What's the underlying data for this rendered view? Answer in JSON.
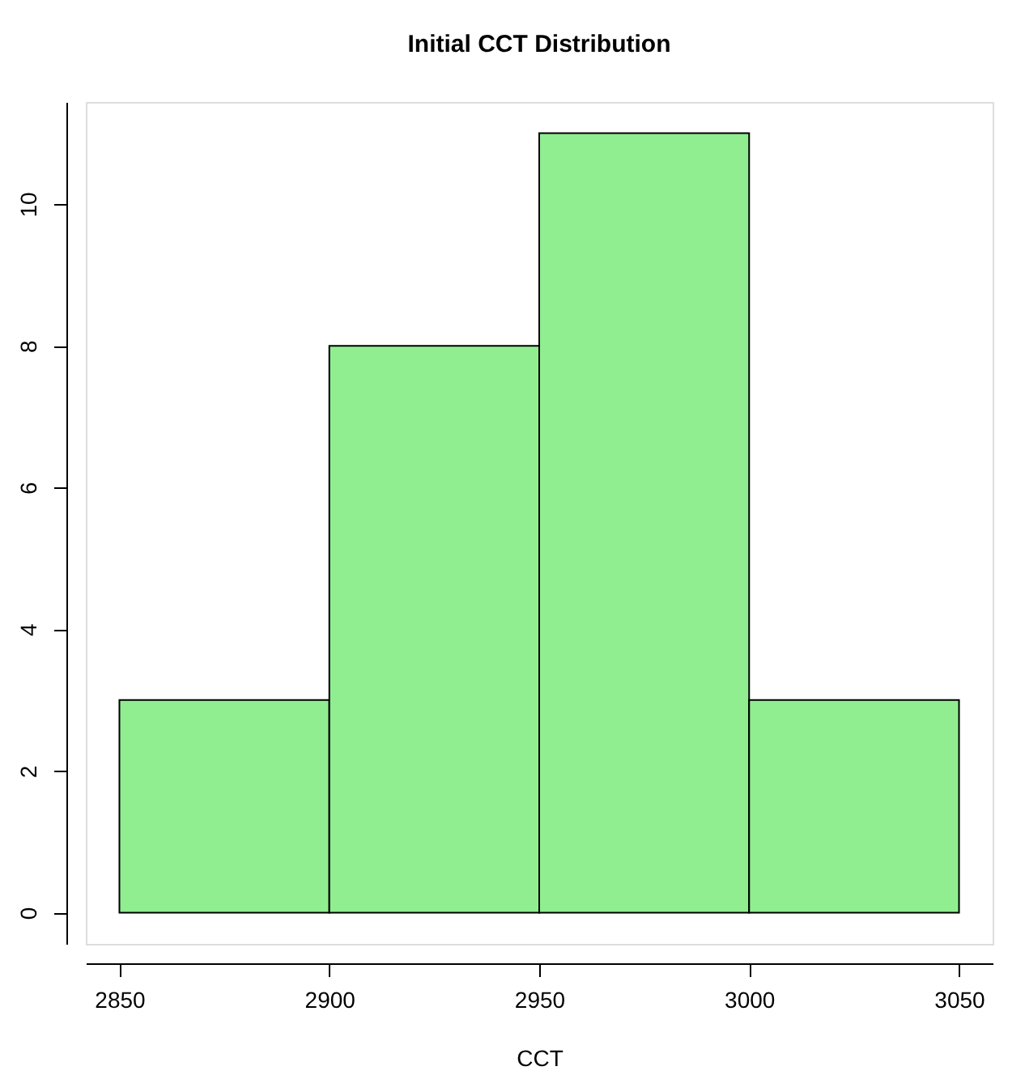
{
  "chart_data": {
    "type": "histogram",
    "title": "Initial CCT Distribution",
    "xlabel": "CCT",
    "bins": [
      2850,
      2900,
      2950,
      3000,
      3050
    ],
    "values": [
      3,
      8,
      11,
      3
    ],
    "color": "#90ee90",
    "xlim": [
      2842,
      3058
    ],
    "xticks": [
      2850,
      2900,
      2950,
      3000,
      3050
    ],
    "ylim": [
      -0.44,
      11.44
    ],
    "yticks": [
      0,
      2,
      4,
      6,
      8,
      10
    ],
    "grid": false
  }
}
